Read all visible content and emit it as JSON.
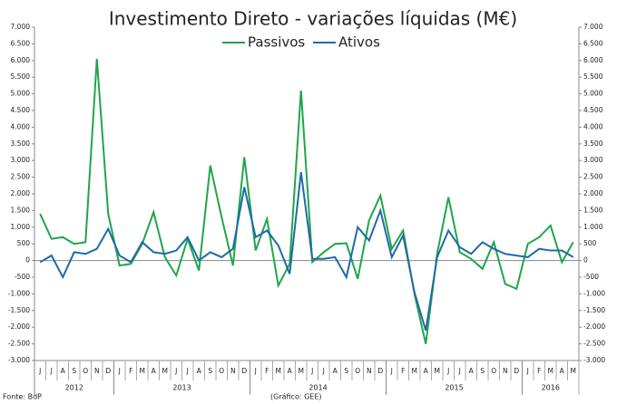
{
  "chart_data": {
    "type": "line",
    "title": "Investimento Direto - variações líquidas (M€)",
    "categories": [
      "J",
      "J",
      "A",
      "S",
      "O",
      "N",
      "D",
      "J",
      "F",
      "M",
      "A",
      "M",
      "J",
      "J",
      "A",
      "S",
      "O",
      "N",
      "D",
      "J",
      "F",
      "M",
      "A",
      "M",
      "J",
      "J",
      "A",
      "S",
      "O",
      "N",
      "D",
      "J",
      "F",
      "M",
      "A",
      "M",
      "J",
      "J",
      "A",
      "S",
      "O",
      "N",
      "D",
      "J",
      "F",
      "M",
      "A",
      "M"
    ],
    "x_groups": [
      {
        "label": "2012",
        "months": 7
      },
      {
        "label": "2013",
        "months": 12
      },
      {
        "label": "2014",
        "months": 12
      },
      {
        "label": "2015",
        "months": 12
      },
      {
        "label": "2016",
        "months": 5
      }
    ],
    "series": [
      {
        "name": "Passivos",
        "color": "#1fa64a",
        "values": [
          1400,
          650,
          700,
          500,
          550,
          6050,
          1400,
          -150,
          -100,
          500,
          1450,
          100,
          -450,
          650,
          -300,
          2850,
          1300,
          -150,
          3100,
          300,
          1250,
          -750,
          -100,
          5100,
          -50,
          250,
          500,
          520,
          -550,
          1200,
          1950,
          350,
          900,
          -1000,
          -2500,
          200,
          1900,
          250,
          50,
          -250,
          550,
          -700,
          -850,
          500,
          700,
          1050,
          -50,
          550
        ]
      },
      {
        "name": "Ativos",
        "color": "#1f6aa8",
        "values": [
          -50,
          150,
          -500,
          250,
          200,
          350,
          950,
          150,
          -50,
          550,
          250,
          200,
          300,
          700,
          0,
          250,
          100,
          350,
          2200,
          700,
          900,
          450,
          -400,
          2650,
          50,
          50,
          100,
          -500,
          1000,
          600,
          1500,
          100,
          750,
          -950,
          -2100,
          100,
          900,
          400,
          200,
          550,
          350,
          200,
          150,
          100,
          350,
          300,
          300,
          100
        ]
      }
    ],
    "ylim": [
      -3000,
      7000
    ],
    "yticks": [
      {
        "value": -3000,
        "label": "-3.000"
      },
      {
        "value": -2500,
        "label": "-2.500"
      },
      {
        "value": -2000,
        "label": "-2.000"
      },
      {
        "value": -1500,
        "label": "-1.500"
      },
      {
        "value": -1000,
        "label": "-1.000"
      },
      -500,
      0,
      500,
      {
        "value": 1000,
        "label": "1.000"
      },
      {
        "value": 1500,
        "label": "1.500"
      },
      {
        "value": 2000,
        "label": "2.000"
      },
      {
        "value": 2500,
        "label": "2.500"
      },
      {
        "value": 3000,
        "label": "3.000"
      },
      {
        "value": 3500,
        "label": "3.500"
      },
      {
        "value": 4000,
        "label": "4.000"
      },
      {
        "value": 4500,
        "label": "4.500"
      },
      {
        "value": 5000,
        "label": "5.000"
      },
      {
        "value": 5500,
        "label": "5.500"
      },
      {
        "value": 6000,
        "label": "6.000"
      },
      {
        "value": 6500,
        "label": "6.500"
      },
      {
        "value": 7000,
        "label": "7.000"
      }
    ],
    "y2lim": [
      -3000,
      7000
    ],
    "y2ticks": [
      {
        "value": -3000,
        "label": "-3.000"
      },
      {
        "value": -2500,
        "label": "-2.500"
      },
      {
        "value": -2000,
        "label": "-2.000"
      },
      {
        "value": -1500,
        "label": "-1.500"
      },
      {
        "value": -1000,
        "label": "-1.000"
      },
      -500,
      0,
      500,
      {
        "value": 1000,
        "label": "1.000"
      },
      {
        "value": 1500,
        "label": "1.500"
      },
      {
        "value": 2000,
        "label": "2.000"
      },
      {
        "value": 2500,
        "label": "2.500"
      },
      {
        "value": 3000,
        "label": "3.000"
      },
      {
        "value": 3500,
        "label": "3.500"
      },
      {
        "value": 4000,
        "label": "4.000"
      },
      {
        "value": 4500,
        "label": "4.500"
      },
      {
        "value": 5000,
        "label": "5.000"
      },
      {
        "value": 5500,
        "label": "5.500"
      },
      {
        "value": 6000,
        "label": "6.000"
      },
      {
        "value": 6500,
        "label": "6.500"
      },
      {
        "value": 7000,
        "label": "7.000"
      }
    ],
    "grid": false,
    "legend": "top",
    "source": "Fonte: BdP",
    "note": "(Gráfico: GEE)"
  }
}
